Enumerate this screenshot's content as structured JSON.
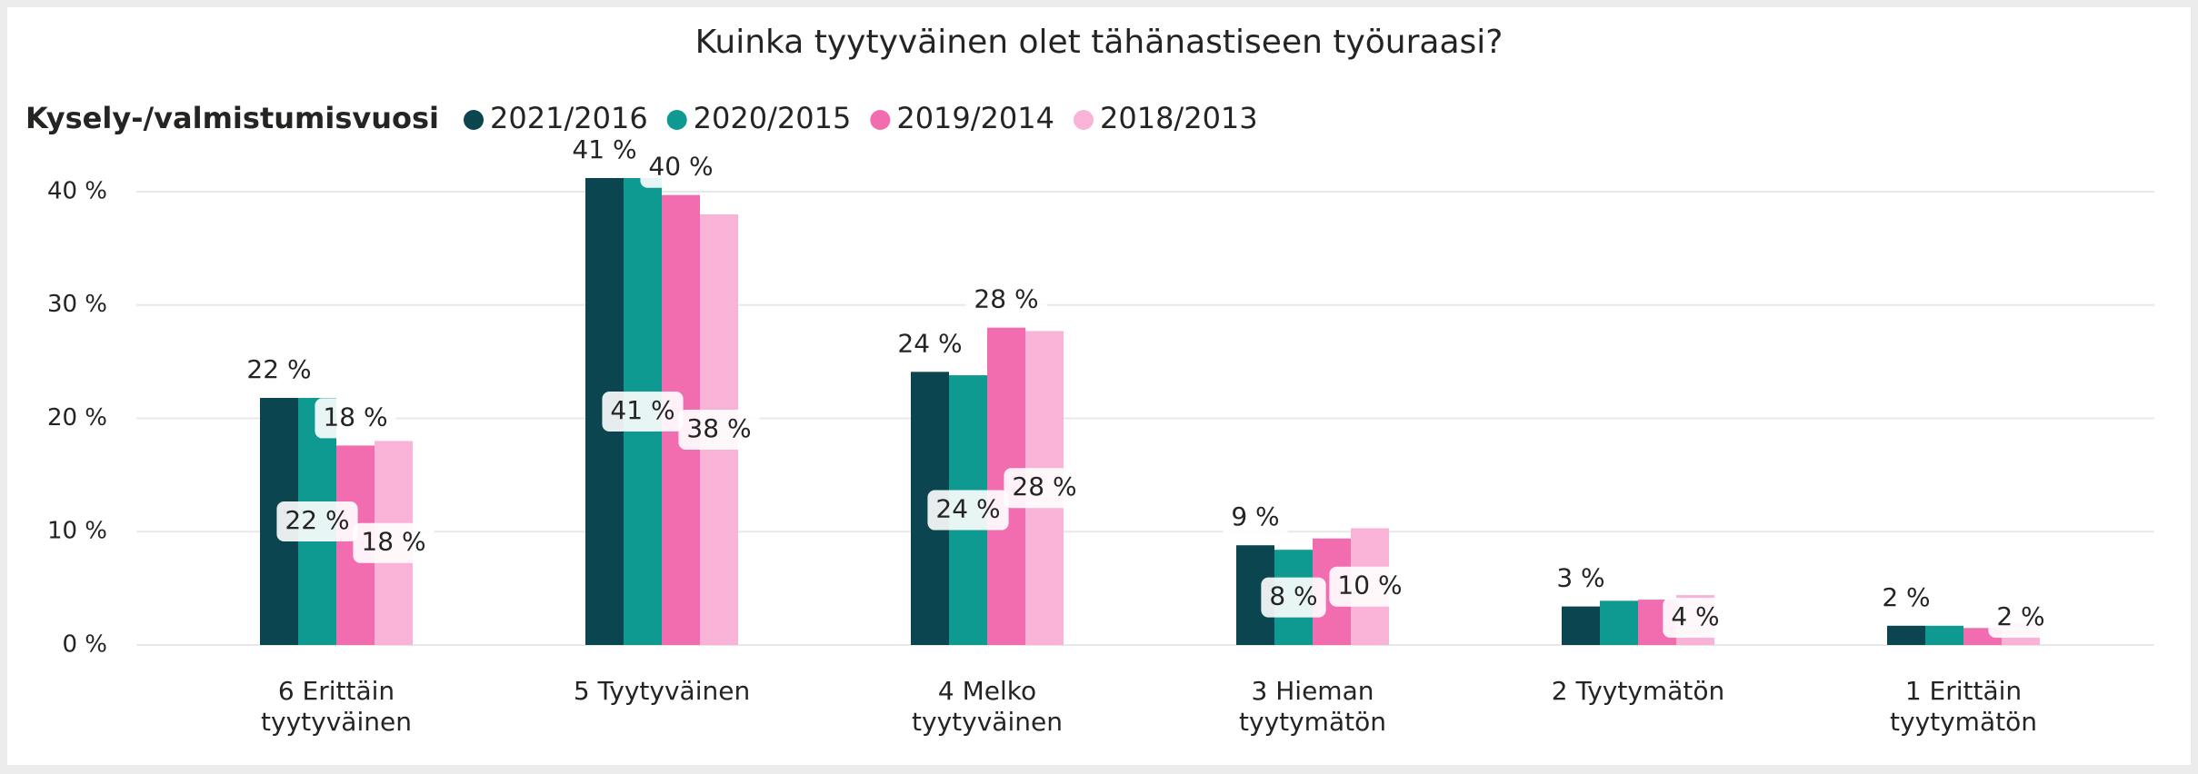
{
  "chart_data": {
    "type": "bar",
    "title": "Kuinka tyytyväinen olet tähänastiseen työuraasi?",
    "legend_title": "Kysely-/valmistumisvuosi",
    "categories": [
      "6 Erittäin tyytyväinen",
      "5 Tyytyväinen",
      "4 Melko tyytyväinen",
      "3 Hieman tyytymätön",
      "2 Tyytymätön",
      "1 Erittäin tyytymätön"
    ],
    "series": [
      {
        "name": "2021/2016",
        "color": "#0b4650",
        "values": [
          21.8,
          41.2,
          24.1,
          8.8,
          3.4,
          1.7
        ],
        "value_labels": [
          "22 %",
          "41 %",
          "24 %",
          "9 %",
          "3 %",
          "2 %"
        ]
      },
      {
        "name": "2020/2015",
        "color": "#0f9a91",
        "values": [
          21.8,
          41.2,
          23.8,
          8.4,
          3.9,
          1.7
        ],
        "value_labels": [
          "22 %",
          "41 %",
          "24 %",
          "8 %",
          null,
          null
        ]
      },
      {
        "name": "2019/2014",
        "color": "#f26db0",
        "values": [
          17.6,
          39.7,
          28.0,
          9.4,
          4.0,
          1.5
        ],
        "value_labels": [
          "18 %",
          "40 %",
          "28 %",
          null,
          null,
          null
        ]
      },
      {
        "name": "2018/2013",
        "color": "#f9b3d6",
        "values": [
          18.0,
          38.0,
          27.7,
          10.3,
          4.4,
          2.0
        ],
        "value_labels": [
          "18 %",
          "38 %",
          "28 %",
          "10 %",
          "4 %",
          "2 %"
        ]
      }
    ],
    "ylim": [
      0,
      42
    ],
    "yticks": [
      {
        "value": 0,
        "label": "0 %"
      },
      {
        "value": 10,
        "label": "10 %"
      },
      {
        "value": 20,
        "label": "20 %"
      },
      {
        "value": 30,
        "label": "30 %"
      },
      {
        "value": 40,
        "label": "40 %"
      }
    ],
    "grid": true
  }
}
